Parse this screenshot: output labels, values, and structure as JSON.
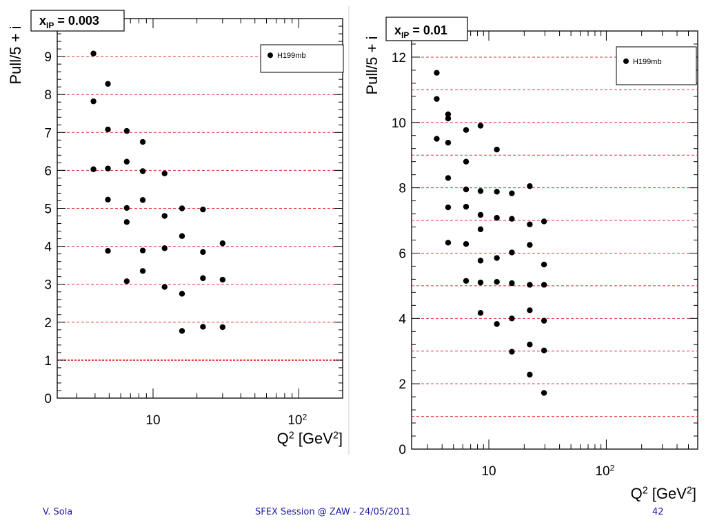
{
  "footer": {
    "author": "V. Sola",
    "session": "SFEX Session @ ZAW - 24/05/2011",
    "page": "42"
  },
  "chart_data": [
    {
      "type": "scatter",
      "title": "x_IP = 0.003",
      "title_main": "x",
      "title_sub": "IP",
      "title_rest": " = 0.003",
      "xlabel": "Q² [GeV²]",
      "ylabel": "Pull/5 + i",
      "x_scale": "log",
      "xlim": [
        2.2,
        200
      ],
      "ylim": [
        0,
        10
      ],
      "y_ticks": [
        0,
        1,
        2,
        3,
        4,
        5,
        6,
        7,
        8,
        9
      ],
      "x_tick_labels": [
        {
          "value": 10,
          "label": "10"
        },
        {
          "value": 100,
          "label": "10²"
        }
      ],
      "reference_lines": [
        1,
        2,
        3,
        4,
        5,
        6,
        7,
        8,
        9
      ],
      "colors": {
        "reference": "#e03030",
        "points": "#000000"
      },
      "legend": {
        "label": "H199mb",
        "position": "top-right"
      },
      "series": [
        {
          "name": "H199mb",
          "points": [
            [
              3.9,
              9.08
            ],
            [
              3.9,
              7.82
            ],
            [
              3.9,
              6.03
            ],
            [
              4.9,
              8.28
            ],
            [
              4.9,
              7.08
            ],
            [
              4.9,
              6.05
            ],
            [
              4.9,
              5.23
            ],
            [
              4.9,
              3.88
            ],
            [
              6.6,
              7.04
            ],
            [
              6.6,
              6.23
            ],
            [
              6.6,
              5.01
            ],
            [
              6.6,
              4.64
            ],
            [
              6.6,
              3.08
            ],
            [
              8.5,
              6.75
            ],
            [
              8.5,
              5.98
            ],
            [
              8.5,
              5.22
            ],
            [
              8.5,
              3.89
            ],
            [
              8.5,
              3.35
            ],
            [
              12,
              5.92
            ],
            [
              12,
              4.8
            ],
            [
              12,
              3.95
            ],
            [
              12,
              2.93
            ],
            [
              15.8,
              5.0
            ],
            [
              15.8,
              4.27
            ],
            [
              15.8,
              2.75
            ],
            [
              15.8,
              1.77
            ],
            [
              22,
              4.97
            ],
            [
              22,
              3.85
            ],
            [
              22,
              3.16
            ],
            [
              22,
              1.88
            ],
            [
              30,
              4.08
            ],
            [
              30,
              3.12
            ],
            [
              30,
              1.87
            ]
          ]
        }
      ]
    },
    {
      "type": "scatter",
      "title": "x_IP = 0.01",
      "title_main": "x",
      "title_sub": "IP",
      "title_rest": " = 0.01",
      "xlabel": "Q² [GeV²]",
      "ylabel": "Pull/5 + i",
      "x_scale": "log",
      "xlim": [
        2.2,
        600
      ],
      "ylim": [
        0,
        12.8
      ],
      "y_ticks": [
        0,
        2,
        4,
        6,
        8,
        10,
        12
      ],
      "x_tick_labels": [
        {
          "value": 10,
          "label": "10"
        },
        {
          "value": 100,
          "label": "10²"
        }
      ],
      "reference_lines": [
        1,
        2,
        3,
        4,
        5,
        6,
        7,
        8,
        9,
        10,
        11,
        12
      ],
      "colors": {
        "reference": "#e03030",
        "points": "#000000"
      },
      "legend": {
        "label": "H199mb",
        "position": "top-right"
      },
      "series": [
        {
          "name": "H199mb",
          "points": [
            [
              3.6,
              11.52
            ],
            [
              3.6,
              10.72
            ],
            [
              3.6,
              9.5
            ],
            [
              4.5,
              10.25
            ],
            [
              4.5,
              10.12
            ],
            [
              4.5,
              9.38
            ],
            [
              4.5,
              8.3
            ],
            [
              4.5,
              7.4
            ],
            [
              4.5,
              6.32
            ],
            [
              6.4,
              9.77
            ],
            [
              6.4,
              8.8
            ],
            [
              6.4,
              7.95
            ],
            [
              6.4,
              7.42
            ],
            [
              6.4,
              6.28
            ],
            [
              6.4,
              5.15
            ],
            [
              8.5,
              9.9
            ],
            [
              8.5,
              7.9
            ],
            [
              8.5,
              7.17
            ],
            [
              8.5,
              6.73
            ],
            [
              8.5,
              5.77
            ],
            [
              8.5,
              5.1
            ],
            [
              8.5,
              4.17
            ],
            [
              11.7,
              9.17
            ],
            [
              11.7,
              7.88
            ],
            [
              11.7,
              7.08
            ],
            [
              11.7,
              5.85
            ],
            [
              11.7,
              5.12
            ],
            [
              11.7,
              3.83
            ],
            [
              15.7,
              7.83
            ],
            [
              15.7,
              7.05
            ],
            [
              15.7,
              6.02
            ],
            [
              15.7,
              5.08
            ],
            [
              15.7,
              4.0
            ],
            [
              15.7,
              2.98
            ],
            [
              22.3,
              8.05
            ],
            [
              22.3,
              6.88
            ],
            [
              22.3,
              6.25
            ],
            [
              22.3,
              5.03
            ],
            [
              22.3,
              4.25
            ],
            [
              22.3,
              3.2
            ],
            [
              22.3,
              2.28
            ],
            [
              29.5,
              6.97
            ],
            [
              29.5,
              5.65
            ],
            [
              29.5,
              5.03
            ],
            [
              29.5,
              3.93
            ],
            [
              29.5,
              3.02
            ],
            [
              29.5,
              1.72
            ]
          ]
        }
      ]
    }
  ]
}
